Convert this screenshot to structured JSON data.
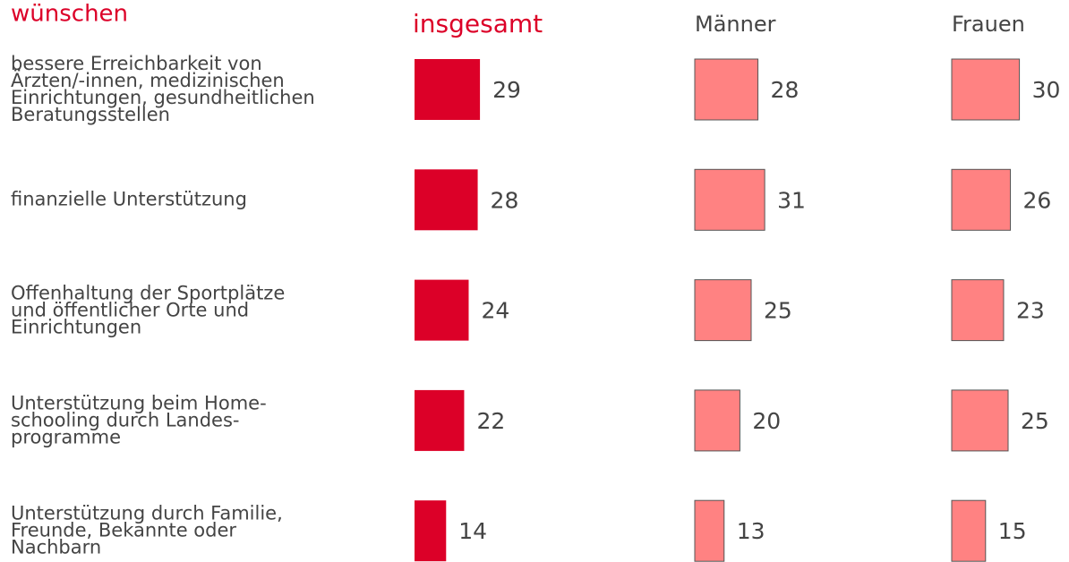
{
  "chart_data": {
    "type": "bar",
    "orientation": "horizontal",
    "title": "wünschen",
    "categories": [
      "bessere Erreichbarkeit von\nÄrzten/-innen, medizinischen\nEinrichtungen, gesundheitlichen\nBeratungsstellen",
      "finanzielle Unterstützung",
      "Offenhaltung der Sportplätze\nund öffentlicher Orte und\nEinrichtungen",
      "Unterstützung beim Home-\nschooling durch Landes-\nprogramme",
      "Unterstützung durch Familie,\nFreunde, Bekannte oder\nNachbarn"
    ],
    "series": [
      {
        "name": "insgesamt",
        "color": "#dc0028",
        "values": [
          29,
          28,
          24,
          22,
          14
        ]
      },
      {
        "name": "Männer",
        "color": "#ff8282",
        "values": [
          28,
          31,
          25,
          20,
          13
        ]
      },
      {
        "name": "Frauen",
        "color": "#ff8282",
        "values": [
          30,
          26,
          23,
          25,
          15
        ]
      }
    ]
  }
}
